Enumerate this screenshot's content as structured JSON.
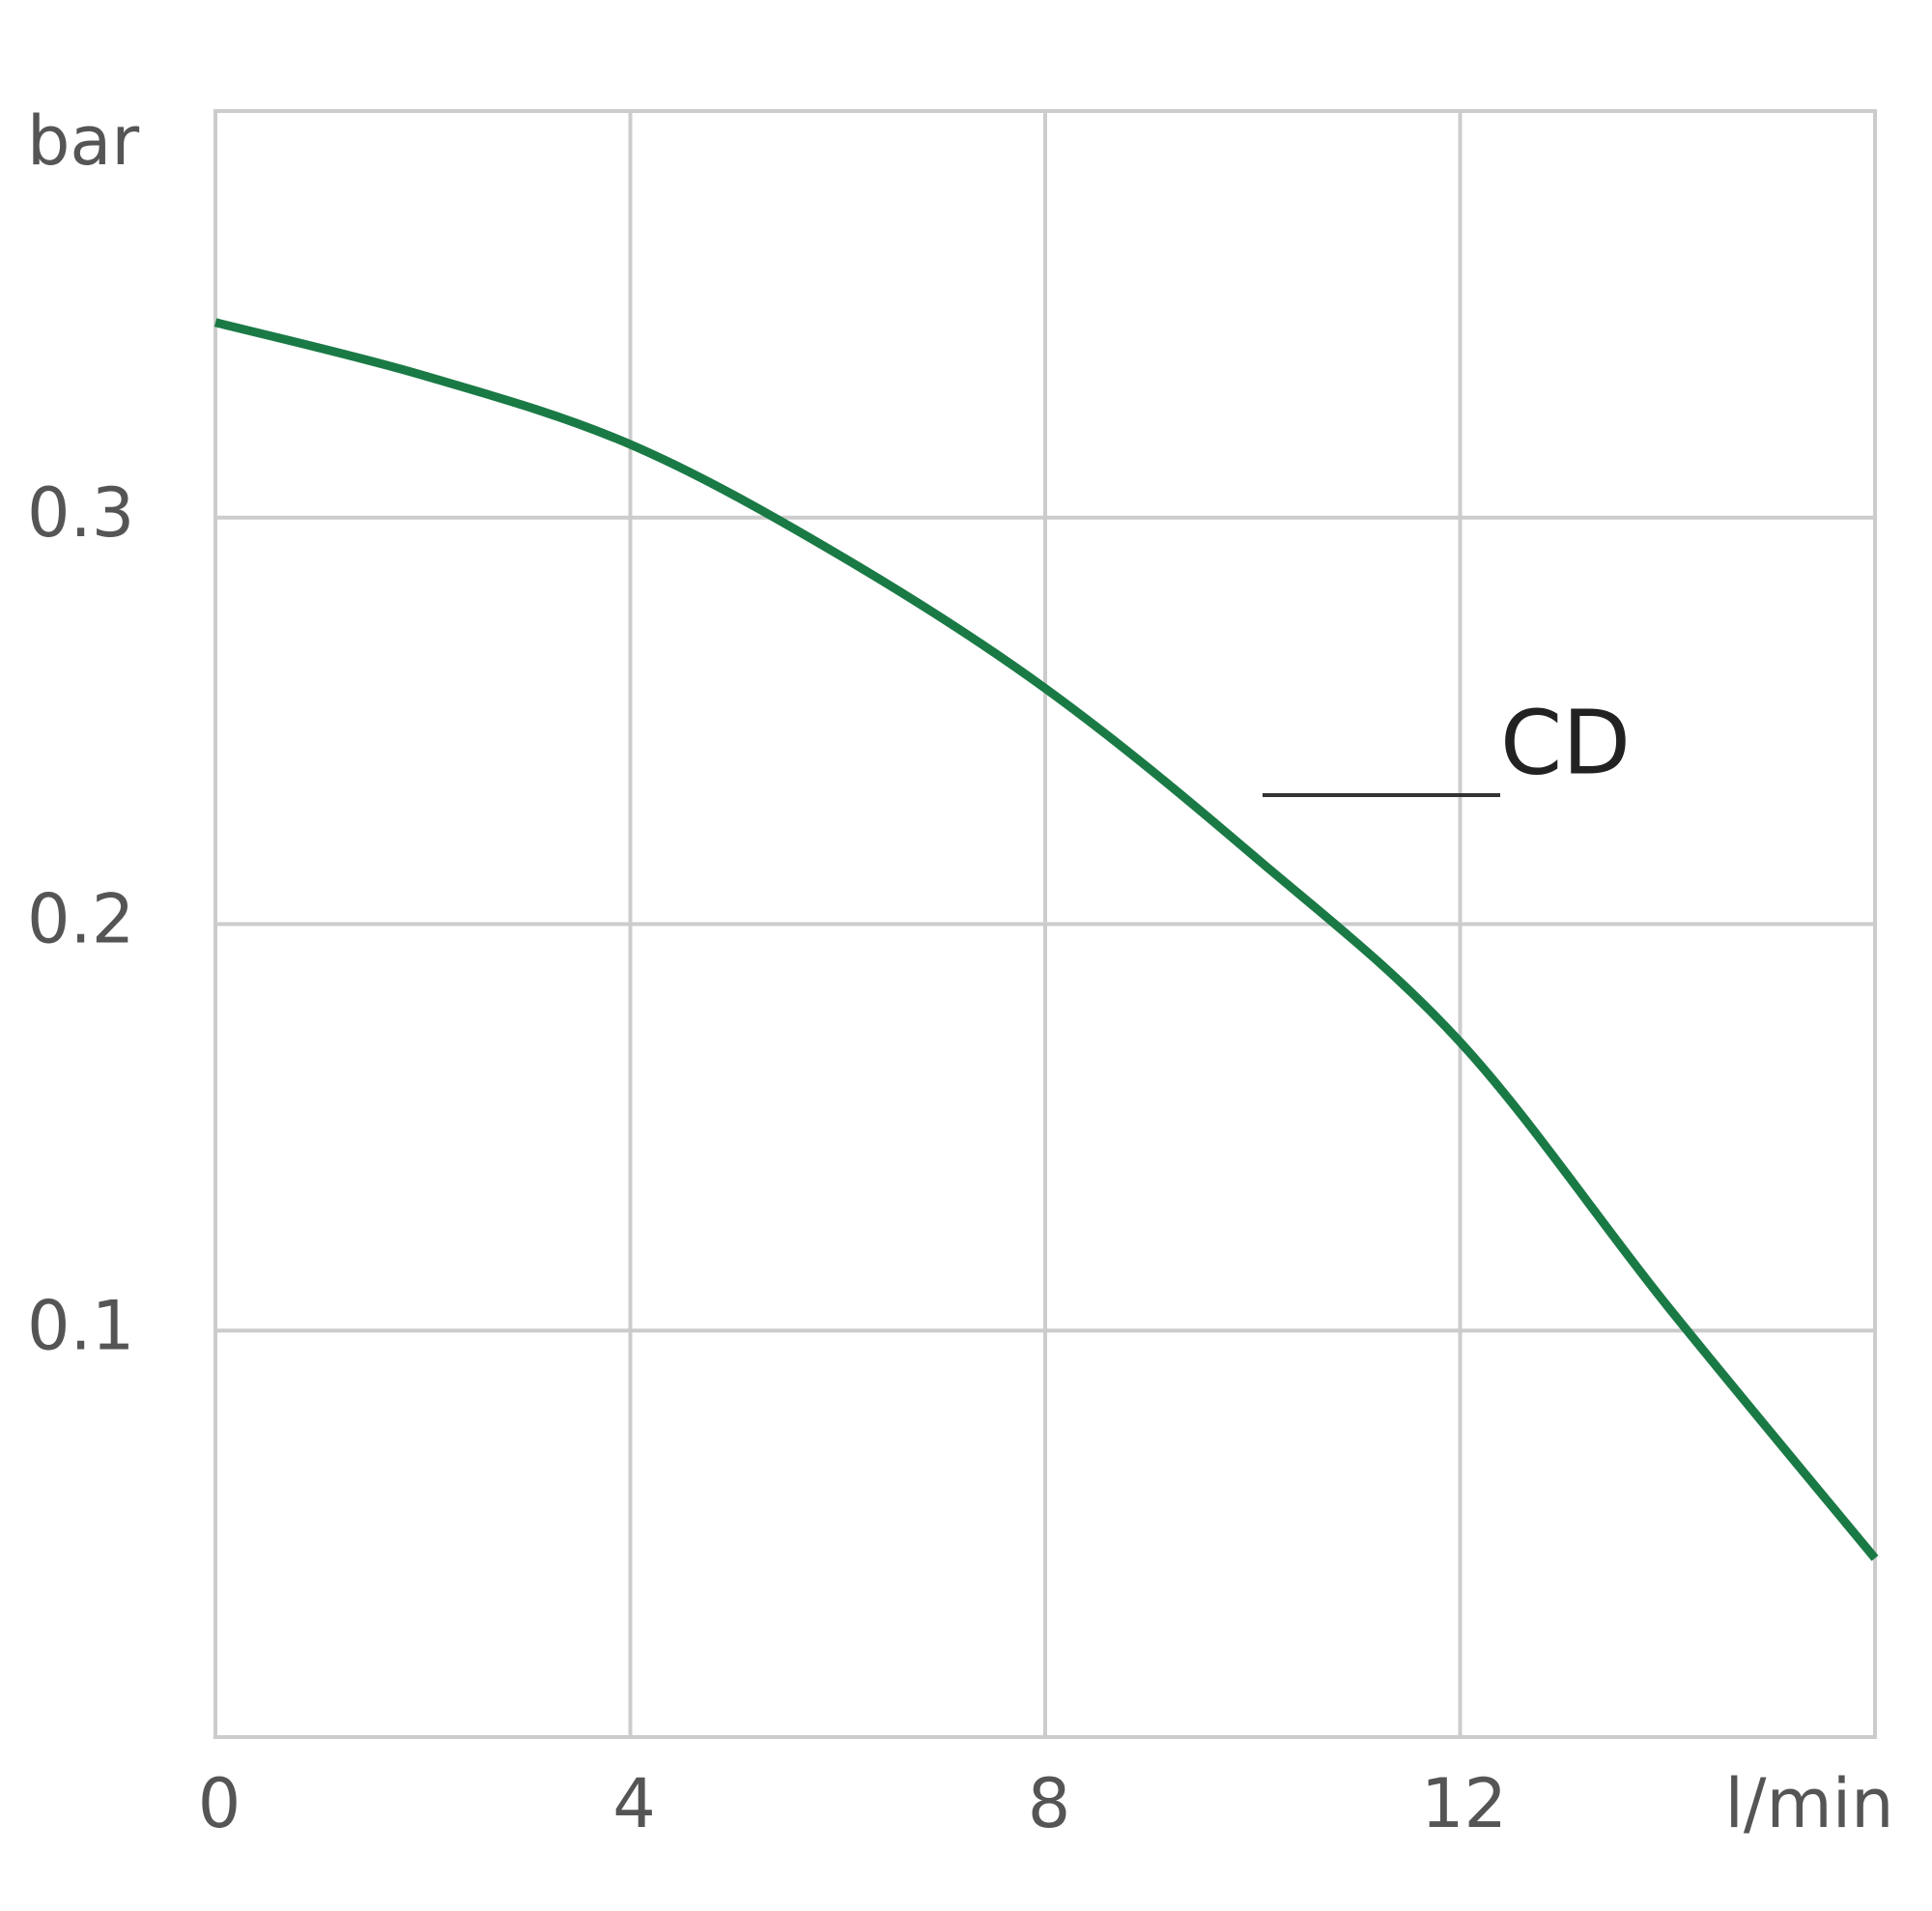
{
  "chart_data": {
    "type": "line",
    "y_label": "bar",
    "x_label": "l/min",
    "x": [
      0,
      2,
      4,
      6,
      8,
      10,
      12,
      14,
      16
    ],
    "series": [
      {
        "name": "CD",
        "color": "#1a7a45",
        "values": [
          0.348,
          0.335,
          0.318,
          0.291,
          0.258,
          0.217,
          0.171,
          0.106,
          0.044
        ]
      }
    ],
    "xlim": [
      0,
      16
    ],
    "xticks": [
      0,
      4,
      8,
      12
    ],
    "ylim": [
      0,
      0.4
    ],
    "yticks": [
      0.1,
      0.2,
      0.3
    ],
    "grid": true
  }
}
